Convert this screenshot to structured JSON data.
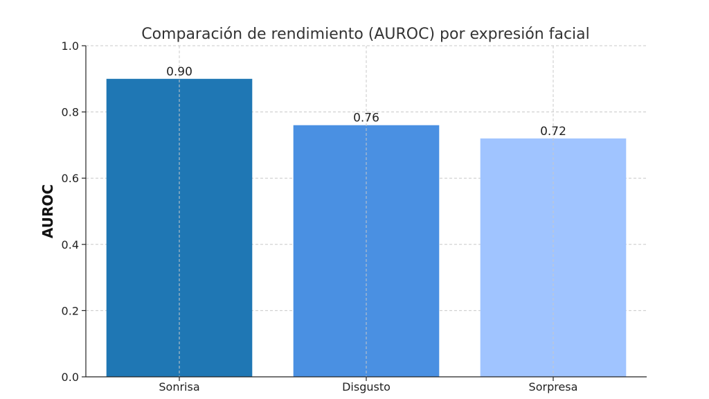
{
  "chart_data": {
    "type": "bar",
    "title": "Comparación de rendimiento (AUROC) por expresión facial",
    "xlabel": "",
    "ylabel": "AUROC",
    "categories": [
      "Sonrisa",
      "Disgusto",
      "Sorpresa"
    ],
    "values": [
      0.9,
      0.76,
      0.72
    ],
    "data_labels": [
      "0.90",
      "0.76",
      "0.72"
    ],
    "colors": [
      "#1f77b4",
      "#4a90e2",
      "#a0c4ff"
    ],
    "ylim": [
      0,
      1.0
    ],
    "yticks": [
      "0.0",
      "0.2",
      "0.4",
      "0.6",
      "0.8",
      "1.0"
    ],
    "grid": true
  }
}
